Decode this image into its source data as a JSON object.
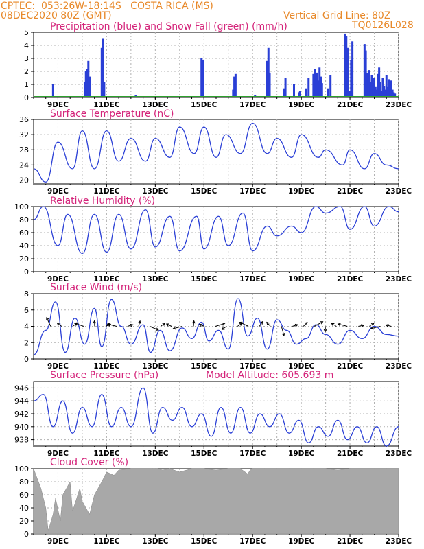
{
  "header": {
    "left_line1": "CPTEC:  053:26W-18:14S   COSTA RICA (MS)",
    "left_line2": "08DEC2020 80Z (GMT)",
    "right_line1": "Vertical Grid Line: 80Z",
    "right_line2": "TQ0126L028"
  },
  "colors": {
    "header": "#e8892a",
    "title": "#d4247a",
    "line": "#2a3fd6",
    "snow": "#2ca02c",
    "cloud": "#a8a8a8",
    "grid": "#b0b0b0"
  },
  "x_axis": {
    "start_day": 8,
    "end_day": 23,
    "tick_labels": [
      "9DEC",
      "11DEC",
      "13DEC",
      "15DEC",
      "17DEC",
      "19DEC",
      "21DEC",
      "23DEC"
    ],
    "tick_days": [
      9,
      11,
      13,
      15,
      17,
      19,
      21,
      23
    ],
    "grid_days": [
      9,
      10,
      11,
      12,
      13,
      14,
      15,
      16,
      17,
      18,
      19,
      20,
      21,
      22,
      23
    ]
  },
  "chart_data": [
    {
      "type": "bar",
      "title": "Precipitation (blue) and Snow Fall (green) (mm/h)",
      "ylim": [
        0,
        5
      ],
      "yticks": [
        "0",
        "1",
        "2",
        "3",
        "4",
        "5"
      ],
      "series": [
        {
          "name": "Precipitation",
          "color": "#2a3fd6",
          "x": [
            8.8,
            10.1,
            10.15,
            10.2,
            10.25,
            10.3,
            10.8,
            10.85,
            10.9,
            12.2,
            14.9,
            14.95,
            16.2,
            16.25,
            16.3,
            17.1,
            17.6,
            17.65,
            17.7,
            18.3,
            18.35,
            18.7,
            18.9,
            18.95,
            19.2,
            19.3,
            19.5,
            19.55,
            19.6,
            19.65,
            19.7,
            19.75,
            19.8,
            19.85,
            20.1,
            20.2,
            20.8,
            20.85,
            20.9,
            21.0,
            21.05,
            21.1,
            21.6,
            21.65,
            21.7,
            21.75,
            21.8,
            21.85,
            21.9,
            21.95,
            22.0,
            22.05,
            22.1,
            22.15,
            22.2,
            22.25,
            22.3,
            22.35,
            22.4,
            22.45,
            22.5,
            22.55,
            22.6,
            22.65,
            22.7,
            22.75,
            22.8,
            22.85
          ],
          "values": [
            1.0,
            1.2,
            2.0,
            2.2,
            2.8,
            1.6,
            3.8,
            4.5,
            1.2,
            0.2,
            3.0,
            2.9,
            0.6,
            1.6,
            1.8,
            0.2,
            2.8,
            3.8,
            1.9,
            0.7,
            1.5,
            1.0,
            0.4,
            0.5,
            0.7,
            1.5,
            1.8,
            2.2,
            1.4,
            1.9,
            1.3,
            2.3,
            1.6,
            1.1,
            0.7,
            1.7,
            4.9,
            4.7,
            3.8,
            0.5,
            2.9,
            4.3,
            4.1,
            3.6,
            1.9,
            1.4,
            2.1,
            1.2,
            1.7,
            1.1,
            1.5,
            0.8,
            0.6,
            1.8,
            2.3,
            1.2,
            0.5,
            1.5,
            0.9,
            0.6,
            1.7,
            0.8,
            1.4,
            1.2,
            1.3,
            0.6,
            0.4,
            0.3
          ]
        },
        {
          "name": "Snow Fall",
          "color": "#2ca02c",
          "x": [
            8.0,
            23.0
          ],
          "values": [
            0,
            0
          ]
        }
      ]
    },
    {
      "type": "line",
      "title": "Surface Temperature (nC)",
      "ylim": [
        19,
        36
      ],
      "yticks": [
        "20",
        "24",
        "28",
        "32",
        "36"
      ],
      "series": [
        {
          "name": "Surface Temperature",
          "x": [
            8.0,
            8.5,
            9.0,
            9.6,
            10.0,
            10.5,
            11.0,
            11.5,
            12.0,
            12.6,
            13.0,
            13.6,
            14.0,
            14.6,
            15.0,
            15.5,
            15.9,
            16.5,
            17.0,
            17.6,
            18.0,
            18.6,
            19.0,
            19.7,
            20.0,
            20.7,
            21.0,
            21.6,
            22.0,
            22.5,
            23.0
          ],
          "values": [
            23,
            19.5,
            30,
            23,
            33,
            23,
            33,
            25,
            31,
            25,
            31,
            26,
            34,
            27,
            34,
            26,
            32,
            27,
            35,
            27,
            31,
            26,
            32,
            26,
            28,
            24,
            28,
            23,
            27,
            24,
            23
          ]
        }
      ]
    },
    {
      "type": "line",
      "title": "Relative Humidity (%)",
      "ylim": [
        0,
        100
      ],
      "yticks": [
        "0",
        "20",
        "40",
        "60",
        "80",
        "100"
      ],
      "series": [
        {
          "name": "Relative Humidity",
          "x": [
            8.0,
            8.4,
            9.0,
            9.4,
            10.0,
            10.5,
            11.0,
            11.5,
            12.0,
            12.6,
            13.0,
            13.6,
            14.0,
            14.7,
            15.0,
            15.6,
            16.0,
            16.6,
            17.0,
            17.6,
            18.0,
            18.6,
            19.0,
            19.6,
            20.0,
            20.6,
            21.0,
            21.6,
            22.0,
            22.6,
            23.0
          ],
          "values": [
            80,
            100,
            40,
            88,
            28,
            88,
            30,
            88,
            35,
            95,
            38,
            85,
            32,
            85,
            35,
            85,
            40,
            90,
            32,
            70,
            55,
            70,
            60,
            100,
            90,
            100,
            65,
            100,
            70,
            100,
            92
          ]
        }
      ]
    },
    {
      "type": "line",
      "title": "Surface Wind (m/s)",
      "ylim": [
        0,
        8
      ],
      "yticks": [
        "0",
        "2",
        "4",
        "6",
        "8"
      ],
      "series": [
        {
          "name": "Surface Wind",
          "x": [
            8.0,
            8.5,
            8.9,
            9.3,
            9.7,
            10.1,
            10.5,
            10.8,
            11.2,
            11.6,
            12.0,
            12.5,
            12.8,
            13.2,
            13.6,
            14.1,
            14.5,
            14.9,
            15.2,
            15.6,
            16.0,
            16.4,
            16.8,
            17.2,
            17.6,
            18.0,
            18.4,
            18.8,
            19.2,
            19.6,
            20.0,
            20.5,
            21.0,
            21.5,
            22.0,
            22.5,
            23.0
          ],
          "values": [
            0.5,
            3.5,
            7.0,
            0.8,
            5.0,
            1.8,
            6.2,
            1.5,
            7.3,
            4.0,
            1.8,
            4.2,
            0.8,
            3.5,
            1.0,
            3.8,
            2.5,
            4.5,
            2.2,
            3.5,
            1.2,
            7.4,
            2.8,
            5.0,
            1.2,
            4.8,
            3.5,
            1.8,
            2.5,
            4.2,
            3.0,
            1.8,
            3.5,
            2.5,
            4.0,
            3.0,
            2.8
          ]
        }
      ]
    },
    {
      "type": "line",
      "title": "Surface Pressure (hPa)",
      "annotation": "Model Altitude: 605.693  m",
      "ylim": [
        937,
        947
      ],
      "yticks": [
        "938",
        "940",
        "942",
        "944",
        "946"
      ],
      "series": [
        {
          "name": "Surface Pressure",
          "x": [
            8.0,
            8.4,
            8.8,
            9.2,
            9.6,
            10.0,
            10.4,
            10.8,
            11.2,
            11.6,
            12.0,
            12.5,
            12.9,
            13.3,
            13.7,
            14.1,
            14.5,
            14.9,
            15.3,
            15.7,
            16.1,
            16.5,
            16.9,
            17.3,
            17.7,
            18.1,
            18.5,
            18.9,
            19.3,
            19.7,
            20.1,
            20.5,
            20.9,
            21.3,
            21.7,
            22.1,
            22.5,
            23.0
          ],
          "values": [
            944,
            945,
            940,
            944,
            939,
            943,
            940,
            945,
            940,
            943,
            940,
            946,
            939,
            943,
            941,
            943,
            940,
            942,
            938.5,
            943,
            939,
            943,
            939,
            942,
            940,
            942,
            939,
            941,
            937.5,
            940,
            938.5,
            941,
            938,
            940,
            937.5,
            940,
            937,
            940
          ]
        }
      ]
    },
    {
      "type": "area",
      "title": "Cloud Cover (%)",
      "ylim": [
        0,
        100
      ],
      "yticks": [
        "0",
        "20",
        "40",
        "60",
        "80",
        "100"
      ],
      "series": [
        {
          "name": "Cloud Cover",
          "color": "#a8a8a8",
          "x": [
            8.0,
            8.05,
            8.1,
            8.2,
            8.3,
            8.5,
            8.6,
            8.8,
            8.9,
            9.1,
            9.2,
            9.5,
            9.6,
            9.9,
            10.0,
            10.3,
            10.5,
            10.8,
            11.0,
            11.3,
            11.5,
            12.0,
            12.5,
            12.9,
            13.0,
            13.1,
            13.3,
            13.6,
            14.0,
            14.5,
            15.0,
            15.5,
            16.0,
            16.5,
            16.8,
            16.9,
            17.0,
            17.5,
            18.0,
            18.5,
            19.0,
            19.5,
            20.0,
            20.5,
            21.0,
            21.5,
            22.0,
            22.5,
            23.0
          ],
          "values": [
            100,
            95,
            90,
            80,
            70,
            40,
            5,
            30,
            55,
            20,
            60,
            80,
            35,
            70,
            50,
            30,
            60,
            80,
            95,
            90,
            98,
            100,
            100,
            100,
            100,
            100,
            98,
            100,
            95,
            100,
            100,
            98,
            100,
            100,
            92,
            98,
            100,
            100,
            100,
            100,
            100,
            100,
            100,
            98,
            100,
            100,
            100,
            100,
            100
          ]
        }
      ]
    }
  ]
}
